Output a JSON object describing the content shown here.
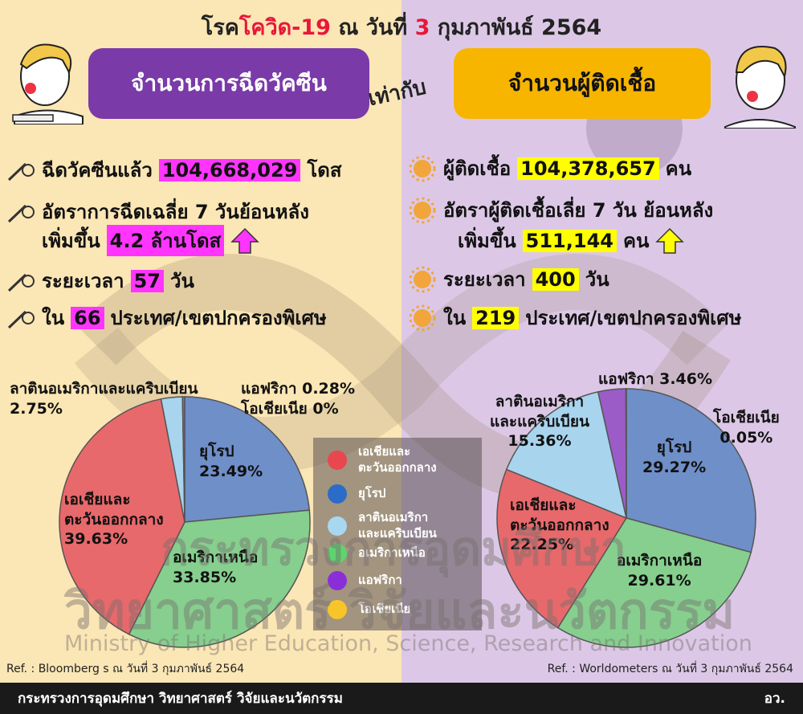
{
  "title": {
    "prefix": "โรค",
    "disease": "โควิด-19",
    "date_pre": " ณ วันที่ ",
    "day": "3",
    "date_post": " กุมภาพันธ์ 2564"
  },
  "vaccine_header": "จำนวนการฉีดวัคซีน",
  "equals": "เท่ากับ",
  "infected_header": "จำนวนผู้ติดเชื้อ",
  "vaccine": {
    "row1": {
      "label": "ฉีดวัคซีนแล้ว",
      "value": "104,668,029",
      "unit": "โดส"
    },
    "row2a": "อัตราการฉีดเฉลี่ย 7 วันย้อนหลัง",
    "row2b": {
      "label": "เพิ่มขึ้น",
      "value": "4.2 ล้านโดส"
    },
    "row3": {
      "label": "ระยะเวลา",
      "value": "57",
      "unit": "วัน"
    },
    "row4": {
      "label": "ใน",
      "value": "66",
      "unit": "ประเทศ/เขตปกครองพิเศษ"
    }
  },
  "infected": {
    "row1": {
      "label": "ผู้ติดเชื้อ",
      "value": "104,378,657",
      "unit": "คน"
    },
    "row2a": "อัตราผู้ติดเชื้อเลี่ย 7 วัน ย้อนหลัง",
    "row2b": {
      "label": "เพิ่มขึ้น",
      "value": "511,144",
      "unit": "คน"
    },
    "row3": {
      "label": "ระยะเวลา",
      "value": "400",
      "unit": "วัน"
    },
    "row4": {
      "label": "ใน",
      "value": "219",
      "unit": "ประเทศ/เขตปกครองพิเศษ"
    }
  },
  "colors": {
    "asia": "#e8696b",
    "europe": "#6f8fc8",
    "latam": "#a8d4ee",
    "namerica": "#86cf8e",
    "africa": "#9b5cc8",
    "oceania": "#f7c52a",
    "magenta": "#ff35ff",
    "yellow": "#ffff00"
  },
  "chart_data": [
    {
      "type": "pie",
      "title": "",
      "categories": [
        "เอเชียและตะวันออกกลาง",
        "ยุโรป",
        "ลาตินอเมริกาและแคริบเบียน",
        "อเมริกาเหนือ",
        "แอฟริกา",
        "โอเชียเนีย"
      ],
      "values": [
        39.63,
        23.49,
        2.75,
        33.85,
        0.28,
        0
      ],
      "labels": {
        "asia": [
          "เอเชียและ",
          "ตะวันออกกลาง",
          "39.63%"
        ],
        "europe": [
          "ยุโรป",
          "23.49%"
        ],
        "latam": [
          "ลาตินอเมริกาและแคริบเบียน",
          "2.75%"
        ],
        "namerica": [
          "อเมริกาเหนือ",
          "33.85%"
        ],
        "africa": [
          "แอฟริกา 0.28%"
        ],
        "oceania": [
          "โอเชียเนีย 0%"
        ]
      }
    },
    {
      "type": "pie",
      "title": "",
      "categories": [
        "เอเชียและตะวันออกกลาง",
        "ยุโรป",
        "ลาตินอเมริกาและแคริบเบียน",
        "อเมริกาเหนือ",
        "แอฟริกา",
        "โอเชียเนีย"
      ],
      "values": [
        22.25,
        29.27,
        15.36,
        29.61,
        3.46,
        0.05
      ],
      "labels": {
        "asia": [
          "เอเชียและ",
          "ตะวันออกกลาง",
          "22.25%"
        ],
        "europe": [
          "ยุโรป",
          "29.27%"
        ],
        "latam": [
          "ลาตินอเมริกา",
          "และแคริบเบียน",
          "15.36%"
        ],
        "namerica": [
          "อเมริกาเหนือ",
          "29.61%"
        ],
        "africa": [
          "แอฟริกา 3.46%"
        ],
        "oceania": [
          "โอเชียเนีย",
          "0.05%"
        ]
      }
    }
  ],
  "legend": [
    {
      "lines": [
        "เอเชียและ",
        "ตะวันออกกลาง"
      ],
      "color_key": "asia"
    },
    {
      "lines": [
        "ยุโรป"
      ],
      "color_key": "europe"
    },
    {
      "lines": [
        "ลาตินอเมริกา",
        "และแคริบเบียน"
      ],
      "color_key": "latam"
    },
    {
      "lines": [
        "อเมริกาเหนือ"
      ],
      "color_key": "namerica"
    },
    {
      "lines": [
        "แอฟริกา"
      ],
      "color_key": "africa"
    },
    {
      "lines": [
        "โอเชียเนีย"
      ],
      "color_key": "oceania"
    }
  ],
  "watermark": {
    "thai1": "กระทรวงการอุดมศึกษา",
    "thai2": "วิทยาศาสตร์ วิจัยและนวัตกรรม",
    "english": "Ministry of Higher Education, Science, Research and Innovation"
  },
  "ref_left": "Ref. : Bloomberg s ณ วันที่ 3 กุมภาพันธ์ 2564",
  "ref_right": "Ref. : Worldometers ณ วันที่ 3 กุมภาพันธ์ 2564",
  "footer_left": "กระทรวงการอุดมศึกษา วิทยาศาสตร์ วิจัยและนวัตกรรม",
  "footer_right": "อว."
}
